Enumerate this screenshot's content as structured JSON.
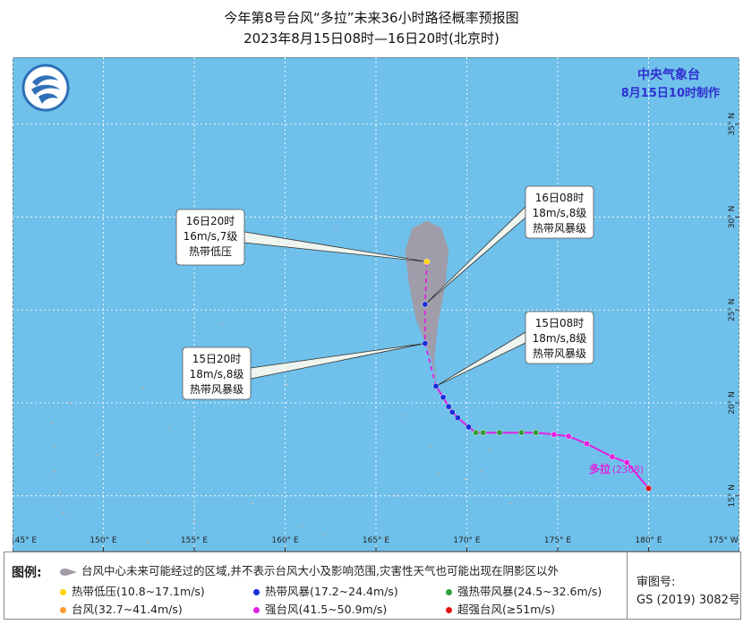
{
  "title": {
    "line1": "今年第8号台风“多拉”未来36小时路径概率预报图",
    "line2": "2023年8月15日08时—16日20时(北京时)"
  },
  "agency": {
    "name": "中央气象台",
    "issued": "8月15日10时制作"
  },
  "map": {
    "lon_range": [
      145,
      185
    ],
    "lat_range": [
      12,
      38.6
    ],
    "lon_ticks": [
      "145° E",
      "150° E",
      "155° E",
      "160° E",
      "165° E",
      "170° E",
      "175° E",
      "180° E",
      "175° W"
    ],
    "lat_ticks": [
      "15° N",
      "20° N",
      "25° N",
      "30° N",
      "35° N"
    ],
    "colors": {
      "ocean": "#6fc0ea",
      "land": "#b9b9b9",
      "cone": "#a19ba7",
      "observed_track": "#e020e0",
      "forecast_track": "#e020e0",
      "grid": "#ffffff"
    }
  },
  "typhoon": {
    "name": "多拉",
    "number": "(2308)"
  },
  "track_observed": [
    {
      "lon": 180.0,
      "lat": 15.4,
      "level": "super_typhoon"
    },
    {
      "lon": 178.8,
      "lat": 16.8,
      "level": "strong_typhoon"
    },
    {
      "lon": 178.0,
      "lat": 17.1,
      "level": "strong_typhoon"
    },
    {
      "lon": 176.6,
      "lat": 17.8,
      "level": "strong_typhoon"
    },
    {
      "lon": 175.6,
      "lat": 18.2,
      "level": "strong_typhoon"
    },
    {
      "lon": 174.8,
      "lat": 18.3,
      "level": "strong_typhoon"
    },
    {
      "lon": 173.8,
      "lat": 18.4,
      "level": "severe_tropical_storm"
    },
    {
      "lon": 173.0,
      "lat": 18.4,
      "level": "severe_tropical_storm"
    },
    {
      "lon": 171.8,
      "lat": 18.4,
      "level": "severe_tropical_storm"
    },
    {
      "lon": 170.9,
      "lat": 18.4,
      "level": "severe_tropical_storm"
    },
    {
      "lon": 170.5,
      "lat": 18.4,
      "level": "severe_tropical_storm"
    },
    {
      "lon": 170.1,
      "lat": 18.7,
      "level": "tropical_storm"
    },
    {
      "lon": 169.5,
      "lat": 19.2,
      "level": "tropical_storm"
    },
    {
      "lon": 169.2,
      "lat": 19.5,
      "level": "tropical_storm"
    },
    {
      "lon": 169.0,
      "lat": 19.8,
      "level": "tropical_storm"
    },
    {
      "lon": 168.7,
      "lat": 20.3,
      "level": "tropical_storm"
    },
    {
      "lon": 168.3,
      "lat": 20.9,
      "level": "tropical_storm"
    }
  ],
  "track_forecast": [
    {
      "lon": 168.3,
      "lat": 20.9,
      "level": "tropical_storm"
    },
    {
      "lon": 167.7,
      "lat": 23.2,
      "level": "tropical_storm"
    },
    {
      "lon": 167.7,
      "lat": 25.3,
      "level": "tropical_storm"
    },
    {
      "lon": 167.8,
      "lat": 27.6,
      "level": "tropical_depression"
    }
  ],
  "annotations": [
    {
      "lines": [
        "16日20时",
        "16m/s,7级",
        "热带低压"
      ]
    },
    {
      "lines": [
        "16日08时",
        "18m/s,8级",
        "热带风暴级"
      ]
    },
    {
      "lines": [
        "15日08时",
        "18m/s,8级",
        "热带风暴级"
      ]
    },
    {
      "lines": [
        "15日20时",
        "18m/s,8级",
        "热带风暴级"
      ]
    }
  ],
  "legend": {
    "label": "图例:",
    "cone_text": "台风中心未来可能经过的区域,并不表示台风大小及影响范围,灾害性天气也可能出现在阴影区以外",
    "items": [
      {
        "text": "热带低压(10.8~17.1m/s)",
        "color": "#ffd400"
      },
      {
        "text": "热带风暴(17.2~24.4m/s)",
        "color": "#1830d8"
      },
      {
        "text": "强热带风暴(24.5~32.6m/s)",
        "color": "#2e9e3a"
      },
      {
        "text": "台风(32.7~41.4m/s)",
        "color": "#ff9a2e"
      },
      {
        "text": "强台风(41.5~50.9m/s)",
        "color": "#e020e0"
      },
      {
        "text": "超强台风(≥51m/s)",
        "color": "#e01010"
      }
    ]
  },
  "review": {
    "label": "审图号:",
    "number": "GS (2019) 3082号"
  }
}
